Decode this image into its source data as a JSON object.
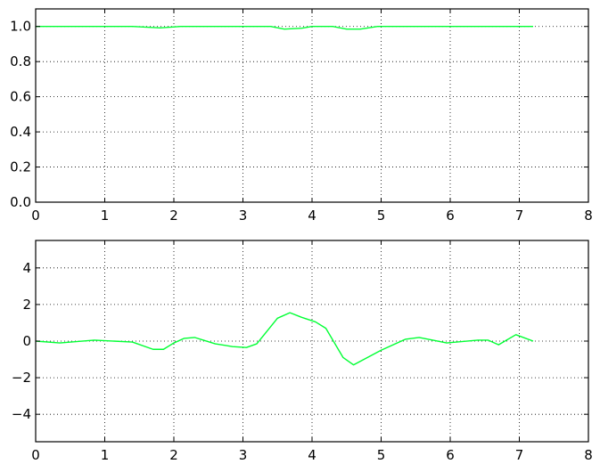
{
  "chart_data": [
    {
      "type": "line",
      "title": "",
      "xlabel": "",
      "ylabel": "",
      "xlim": [
        0,
        8
      ],
      "ylim": [
        0,
        1.1
      ],
      "grid": true,
      "xticks": [
        0,
        1,
        2,
        3,
        4,
        5,
        6,
        7,
        8
      ],
      "xtick_labels": [
        "0",
        "1",
        "2",
        "3",
        "4",
        "5",
        "6",
        "7",
        "8"
      ],
      "yticks": [
        0,
        0.2,
        0.4,
        0.6,
        0.8,
        1.0
      ],
      "ytick_labels": [
        "0.0",
        "0.2",
        "0.4",
        "0.6",
        "0.8",
        "1.0"
      ],
      "series": [
        {
          "color": "#00ff33",
          "x": [
            0,
            1.4,
            1.8,
            2.1,
            3.4,
            3.6,
            3.85,
            4.0,
            4.3,
            4.5,
            4.7,
            4.95,
            7.2
          ],
          "y": [
            1.0,
            1.0,
            0.992,
            1.0,
            1.0,
            0.985,
            0.99,
            1.0,
            1.0,
            0.985,
            0.985,
            1.0,
            1.0
          ]
        }
      ]
    },
    {
      "type": "line",
      "title": "",
      "xlabel": "",
      "ylabel": "",
      "xlim": [
        0,
        8
      ],
      "ylim": [
        -5.5,
        5.5
      ],
      "grid": true,
      "xticks": [
        0,
        1,
        2,
        3,
        4,
        5,
        6,
        7,
        8
      ],
      "xtick_labels": [
        "0",
        "1",
        "2",
        "3",
        "4",
        "5",
        "6",
        "7",
        "8"
      ],
      "yticks": [
        -4,
        -2,
        0,
        2,
        4
      ],
      "ytick_labels": [
        "−4",
        "−2",
        "0",
        "2",
        "4"
      ],
      "series": [
        {
          "color": "#00ff33",
          "x": [
            0,
            0.35,
            0.85,
            1.4,
            1.7,
            1.85,
            2.0,
            2.15,
            2.3,
            2.6,
            2.85,
            3.05,
            3.2,
            3.5,
            3.68,
            3.85,
            4.05,
            4.2,
            4.45,
            4.6,
            5.0,
            5.35,
            5.55,
            5.95,
            6.4,
            6.55,
            6.7,
            6.95,
            7.2
          ],
          "y": [
            0,
            -0.1,
            0.05,
            -0.05,
            -0.45,
            -0.45,
            -0.1,
            0.15,
            0.2,
            -0.15,
            -0.3,
            -0.35,
            -0.15,
            1.25,
            1.55,
            1.3,
            1.05,
            0.7,
            -0.9,
            -1.3,
            -0.5,
            0.1,
            0.2,
            -0.1,
            0.05,
            0.05,
            -0.2,
            0.35,
            0.0
          ]
        }
      ]
    }
  ]
}
